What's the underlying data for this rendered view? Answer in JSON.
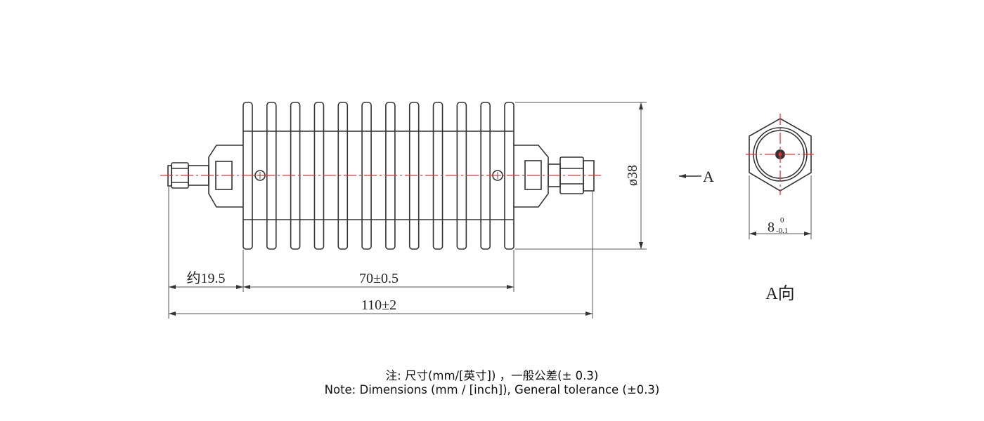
{
  "drawing": {
    "dimensions": {
      "connector_length": "约19.5",
      "body_length": "70±0.5",
      "total_length": "110±2",
      "diameter": "ø38",
      "hex_size_nominal": "8",
      "hex_size_upper": "0",
      "hex_size_lower": "-0.1"
    },
    "view_arrow_label": "A",
    "view_label": "A向",
    "fin_count": 12,
    "centerline_color": "#e8333a"
  },
  "notes": {
    "line_zh": "注: 尺寸(mm/[英寸]) ，一般公差(± 0.3)",
    "line_en": "Note: Dimensions (mm / [inch]), General tolerance (±0.3)"
  }
}
